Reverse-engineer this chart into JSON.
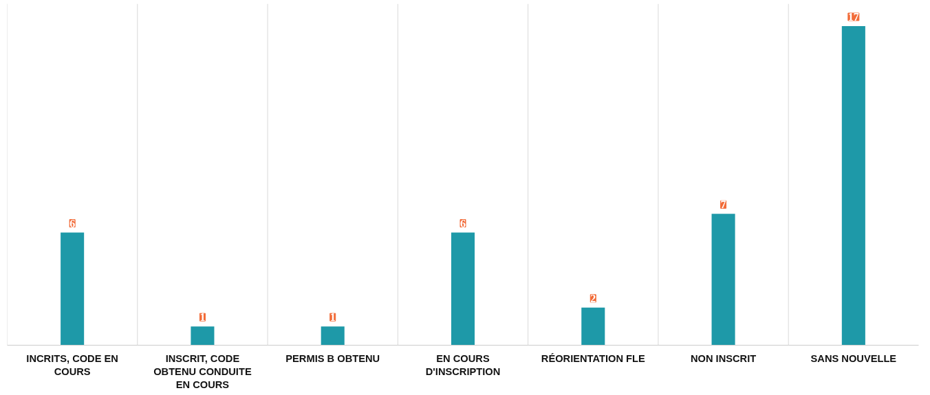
{
  "chart_data": {
    "type": "bar",
    "categories": [
      "INCRITS, CODE EN COURS",
      "INSCRIT, CODE OBTENU CONDUITE EN COURS",
      "PERMIS B OBTENU",
      "EN COURS D'INSCRIPTION",
      "RÉORIENTATION FLE",
      "NON INSCRIT",
      "SANS NOUVELLE"
    ],
    "values": [
      6,
      1,
      1,
      6,
      2,
      7,
      17
    ],
    "color": "#1e99a8",
    "data_labels": true,
    "grid": "x"
  }
}
